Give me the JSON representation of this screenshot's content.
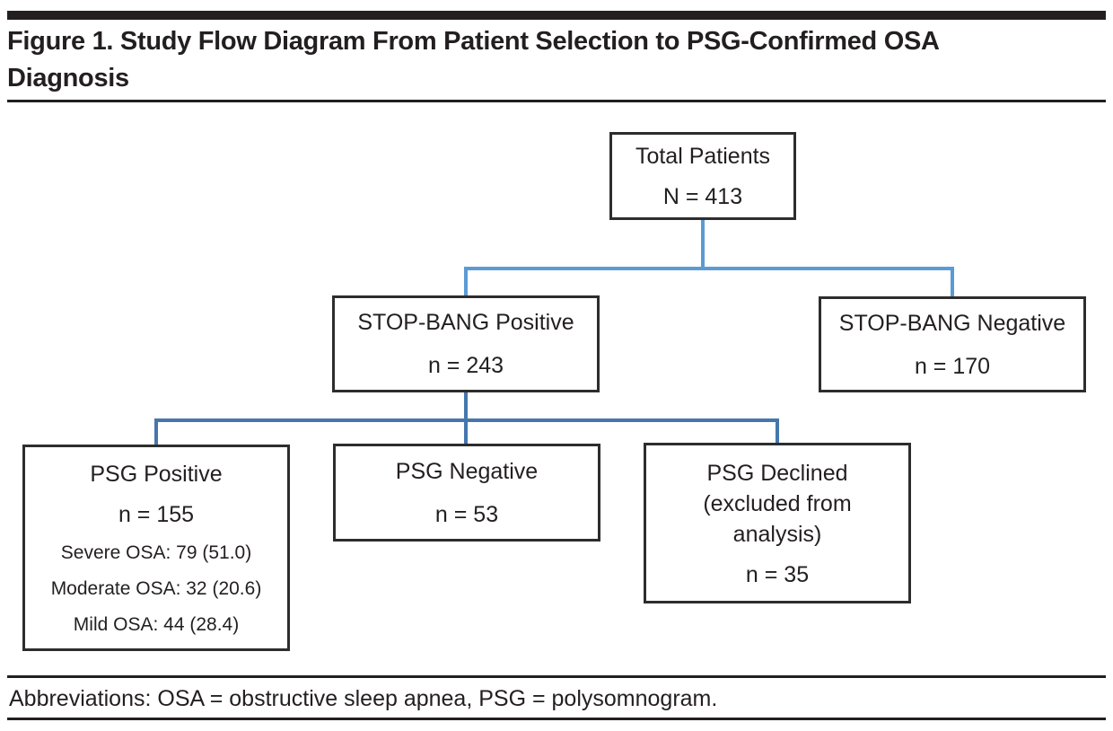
{
  "header": {
    "title_line1": "Figure 1. Study Flow Diagram From Patient Selection to PSG-Confirmed OSA",
    "title_line2": "Diagnosis"
  },
  "flow": {
    "total": {
      "label": "Total Patients",
      "count": "N = 413"
    },
    "stopbang_positive": {
      "label": "STOP-BANG Positive",
      "count": "n = 243"
    },
    "stopbang_negative": {
      "label": "STOP-BANG Negative",
      "count": "n = 170"
    },
    "psg_positive": {
      "label": "PSG Positive",
      "count": "n = 155",
      "severe": "Severe OSA: 79 (51.0)",
      "moderate": "Moderate OSA: 32 (20.6)",
      "mild": "Mild OSA: 44 (28.4)"
    },
    "psg_negative": {
      "label": "PSG Negative",
      "count": "n = 53"
    },
    "psg_declined": {
      "label_line1": "PSG Declined",
      "label_line2": "(excluded from",
      "label_line3": "analysis)",
      "count": "n = 35"
    }
  },
  "footer": {
    "abbreviations": "Abbreviations: OSA = obstructive sleep apnea, PSG = polysomnogram."
  },
  "colors": {
    "ink": "#231F20",
    "box_border": "#2D2D2D",
    "connector_upper_blue": "#5B9BD5",
    "connector_lower_blue": "#4577AD",
    "background": "#FFFFFF"
  }
}
